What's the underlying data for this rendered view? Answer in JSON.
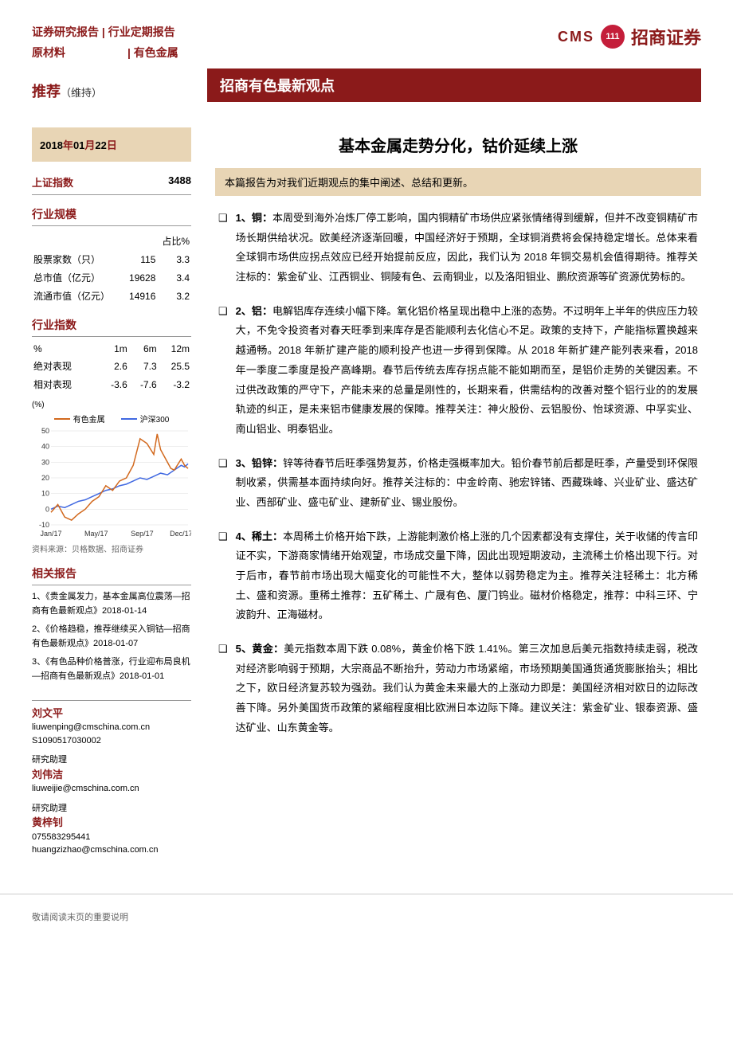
{
  "header": {
    "report_type": "证券研究报告 | 行业定期报告",
    "sector1": "原材料",
    "sector2": "| 有色金属",
    "logo_cms": "CMS",
    "logo_brand": "招商证券"
  },
  "rating": {
    "label": "推荐",
    "sub": "（维持）"
  },
  "date": {
    "prefix": "2018",
    "y": "年",
    "m": "01",
    "ml": "月",
    "d": "22",
    "dl": "日"
  },
  "title_bar": "招商有色最新观点",
  "main_title": "基本金属走势分化，钴价延续上涨",
  "intro": "本篇报告为对我们近期观点的集中阐述、总结和更新。",
  "index": {
    "name": "上证指数",
    "value": "3488"
  },
  "scale": {
    "title": "行业规模",
    "pct_hdr": "占比%",
    "rows": [
      {
        "label": "股票家数（只）",
        "v1": "115",
        "v2": "3.3"
      },
      {
        "label": "总市值（亿元）",
        "v1": "19628",
        "v2": "3.4"
      },
      {
        "label": "流通市值（亿元）",
        "v1": "14916",
        "v2": "3.2"
      }
    ]
  },
  "perf": {
    "title": "行业指数",
    "hdr": [
      "%",
      "1m",
      "6m",
      "12m"
    ],
    "rows": [
      {
        "label": "绝对表现",
        "v": [
          "2.6",
          "7.3",
          "25.5"
        ]
      },
      {
        "label": "相对表现",
        "v": [
          "-3.6",
          "-7.6",
          "-3.2"
        ]
      }
    ]
  },
  "chart": {
    "legend1": "有色金属",
    "legend2": "沪深300",
    "color1": "#d2691e",
    "color2": "#4169e1",
    "y_ticks": [
      "50",
      "40",
      "30",
      "20",
      "10",
      "0",
      "-10"
    ],
    "y_unit": "(%)",
    "x_ticks": [
      "Jan/17",
      "May/17",
      "Sep/17",
      "Dec/17"
    ],
    "source": "资料来源：贝格数据、招商证券",
    "series1": [
      [
        0,
        -2
      ],
      [
        10,
        3
      ],
      [
        20,
        -5
      ],
      [
        30,
        -7
      ],
      [
        40,
        -3
      ],
      [
        50,
        0
      ],
      [
        60,
        5
      ],
      [
        70,
        8
      ],
      [
        80,
        15
      ],
      [
        90,
        12
      ],
      [
        100,
        18
      ],
      [
        110,
        20
      ],
      [
        120,
        28
      ],
      [
        130,
        45
      ],
      [
        140,
        42
      ],
      [
        150,
        35
      ],
      [
        155,
        48
      ],
      [
        160,
        38
      ],
      [
        170,
        30
      ],
      [
        175,
        26
      ],
      [
        180,
        25
      ],
      [
        190,
        32
      ],
      [
        195,
        28
      ],
      [
        200,
        26
      ]
    ],
    "series2": [
      [
        0,
        0
      ],
      [
        10,
        2
      ],
      [
        20,
        1
      ],
      [
        30,
        3
      ],
      [
        40,
        5
      ],
      [
        50,
        6
      ],
      [
        60,
        8
      ],
      [
        70,
        10
      ],
      [
        80,
        12
      ],
      [
        90,
        13
      ],
      [
        100,
        15
      ],
      [
        110,
        16
      ],
      [
        120,
        18
      ],
      [
        130,
        20
      ],
      [
        140,
        19
      ],
      [
        150,
        21
      ],
      [
        160,
        23
      ],
      [
        170,
        22
      ],
      [
        180,
        25
      ],
      [
        190,
        28
      ],
      [
        195,
        27
      ],
      [
        200,
        29
      ]
    ]
  },
  "related": {
    "title": "相关报告",
    "items": [
      "1、《贵金属发力，基本金属高位震荡—招商有色最新观点》2018-01-14",
      "2、《价格趋稳，推荐继续买入铜钴—招商有色最新观点》2018-01-07",
      "3、《有色品种价格普涨，行业迎布局良机—招商有色最新观点》2018-01-01"
    ]
  },
  "analysts": [
    {
      "name": "刘文平",
      "email": "liuwenping@cmschina.com.cn",
      "id": "S1090517030002",
      "role": ""
    },
    {
      "name": "刘伟洁",
      "email": "liuweijie@cmschina.com.cn",
      "id": "",
      "role": "研究助理"
    },
    {
      "name": "黄梓钊",
      "email": "huangzizhao@cmschina.com.cn",
      "id": "075583295441",
      "role": "研究助理"
    }
  ],
  "body": [
    {
      "t": "1、铜：",
      "c": "本周受到海外冶炼厂停工影响，国内铜精矿市场供应紧张情绪得到缓解，但并不改变铜精矿市场长期供给状况。欧美经济逐渐回暖，中国经济好于预期，全球铜消费将会保持稳定增长。总体来看全球铜市场供应拐点效应已经开始提前反应，因此，我们认为 2018 年铜交易机会值得期待。推荐关注标的：紫金矿业、江西铜业、铜陵有色、云南铜业，以及洛阳钼业、鹏欣资源等矿资源优势标的。"
    },
    {
      "t": "2、铝：",
      "c": "电解铝库存连续小幅下降。氧化铝价格呈现出稳中上涨的态势。不过明年上半年的供应压力较大，不免令投资者对春天旺季到来库存是否能顺利去化信心不足。政策的支持下，产能指标置换越来越通畅。2018 年新扩建产能的顺利投产也进一步得到保障。从 2018 年新扩建产能列表来看，2018 年一季度二季度是投产高峰期。春节后传统去库存拐点能不能如期而至，是铝价走势的关键因素。不过供改政策的严守下，产能未来的总量是刚性的，长期来看，供需结构的改善对整个铝行业的的发展轨迹的纠正，是未来铝市健康发展的保障。推荐关注：神火股份、云铝股份、怡球资源、中孚实业、南山铝业、明泰铝业。"
    },
    {
      "t": "3、铅锌：",
      "c": "锌等待春节后旺季强势复苏，价格走强概率加大。铅价春节前后都是旺季，产量受到环保限制收紧，供需基本面持续向好。推荐关注标的：中金岭南、驰宏锌锗、西藏珠峰、兴业矿业、盛达矿业、西部矿业、盛屯矿业、建新矿业、锡业股份。"
    },
    {
      "t": "4、稀土：",
      "c": "本周稀土价格开始下跌，上游能刺激价格上涨的几个因素都没有支撑住，关于收储的传言印证不实，下游商家情绪开始观望，市场成交量下降，因此出现短期波动，主流稀土价格出现下行。对于后市，春节前市场出现大幅变化的可能性不大，整体以弱势稳定为主。推荐关注轻稀土：北方稀土、盛和资源。重稀土推荐：五矿稀土、广晟有色、厦门钨业。磁材价格稳定，推荐：中科三环、宁波韵升、正海磁材。"
    },
    {
      "t": "5、黄金：",
      "c": "美元指数本周下跌 0.08%，黄金价格下跌 1.41%。第三次加息后美元指数持续走弱，税改对经济影响弱于预期，大宗商品不断抬升，劳动力市场紧缩，市场预期美国通货通货膨胀抬头；相比之下，欧日经济复苏较为强劲。我们认为黄金未来最大的上涨动力即是：美国经济相对欧日的边际改善下降。另外美国货币政策的紧缩程度相比欧洲日本边际下降。建议关注：紫金矿业、银泰资源、盛达矿业、山东黄金等。"
    }
  ],
  "footer": "敬请阅读末页的重要说明"
}
